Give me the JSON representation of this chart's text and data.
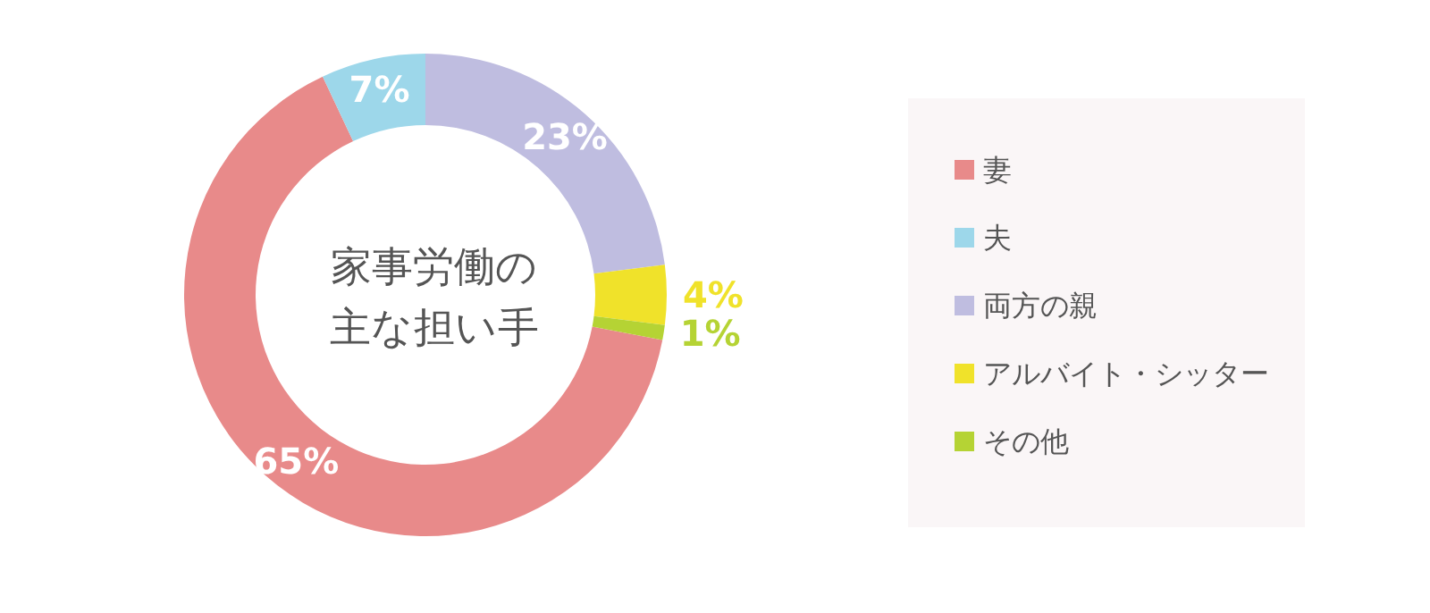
{
  "chart_data": {
    "type": "donut",
    "title": "家事労働の主な担い手",
    "categories": [
      "妻",
      "夫",
      "両方の親",
      "アルバイト・シッター",
      "その他"
    ],
    "values": [
      65,
      7,
      23,
      4,
      1
    ],
    "colors": [
      "#e88a8a",
      "#9dd7ea",
      "#bfbde0",
      "#f0e22a",
      "#b5d334"
    ],
    "value_labels": [
      "65%",
      "7%",
      "23%",
      "4%",
      "1%"
    ],
    "legend": "right"
  }
}
